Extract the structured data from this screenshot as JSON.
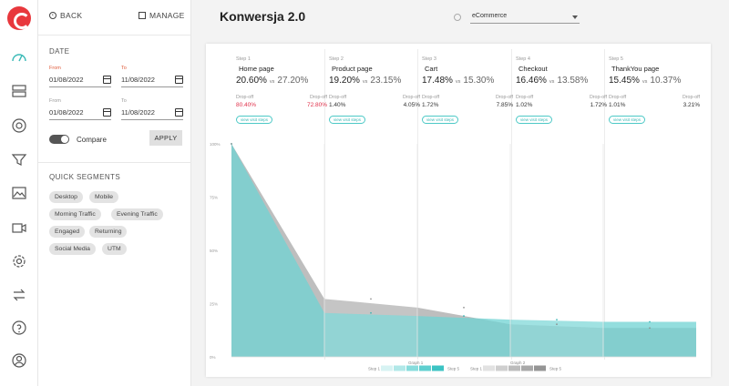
{
  "nav": {
    "back_label": "BACK",
    "manage_label": "MANAGE"
  },
  "date_filter": {
    "title": "DATE",
    "from_label": "From",
    "to_label": "To",
    "primary_from": "01/08/2022",
    "primary_to": "11/08/2022",
    "compare_from": "01/08/2022",
    "compare_to": "11/08/2022",
    "compare_label": "Compare",
    "apply_label": "APPLY"
  },
  "quick_segments": {
    "title": "QUICK SEGMENTS",
    "items": [
      "Desktop",
      "Mobile",
      "Morning Traffic",
      "Evening Traffic",
      "Engaged",
      "Returning",
      "Social Media",
      "UTM"
    ]
  },
  "header": {
    "title": "Konwersja 2.0",
    "selector_value": "eCommerce"
  },
  "funnel": {
    "dropoff_label": "Drop-off",
    "explore_label": "view visit steps",
    "vs_label": "vs",
    "steps": [
      {
        "number": "Step 1",
        "name": "Home page",
        "conversion": "20.60%",
        "conversion_compare": "27.20%",
        "dropoff": "80.40%",
        "dropoff_compare": "72.80%"
      },
      {
        "number": "Step 2",
        "name": "Product page",
        "conversion": "19.20%",
        "conversion_compare": "23.15%",
        "dropoff": "1.40%",
        "dropoff_compare": "4.05%"
      },
      {
        "number": "Step 3",
        "name": "Cart",
        "conversion": "17.48%",
        "conversion_compare": "15.30%",
        "dropoff": "1.72%",
        "dropoff_compare": "7.85%"
      },
      {
        "number": "Step 4",
        "name": "Checkout",
        "conversion": "16.46%",
        "conversion_compare": "13.58%",
        "dropoff": "1.02%",
        "dropoff_compare": "1.72%"
      },
      {
        "number": "Step 5",
        "name": "ThankYou page",
        "conversion": "15.45%",
        "conversion_compare": "10.37%",
        "dropoff": "1.01%",
        "dropoff_compare": "3.21%"
      }
    ]
  },
  "chart_data": {
    "type": "area",
    "y_ticks": [
      "100%",
      "75%",
      "50%",
      "25%",
      "0%"
    ],
    "ylim": [
      0,
      100
    ],
    "x": [
      "Step 1",
      "Step 2",
      "Step 3",
      "Step 4",
      "Step 5"
    ],
    "series": [
      {
        "name": "Graph 1",
        "color": "#6fd3d3",
        "values": [
          100,
          20.6,
          19.2,
          17.48,
          16.46
        ]
      },
      {
        "name": "Graph 2",
        "color": "#b3b3b3",
        "values": [
          100,
          27.2,
          23.15,
          15.3,
          13.58
        ]
      }
    ],
    "legend": [
      {
        "name": "Graph 1",
        "start": "Step 1",
        "end": "Step 5",
        "colors": [
          "#d7f3f3",
          "#b1e8e8",
          "#87dcdc",
          "#5fcfcf",
          "#3cc3c3"
        ]
      },
      {
        "name": "Graph 2",
        "start": "Step 1",
        "end": "Step 5",
        "colors": [
          "#e2e2e2",
          "#cfcfcf",
          "#bcbcbc",
          "#a8a8a8",
          "#959595"
        ]
      }
    ],
    "legend_position": "bottom",
    "grid": "vertical"
  },
  "icons": {
    "rail": [
      "dashboard-icon",
      "heatmap-icon",
      "target-icon",
      "funnel-icon",
      "image-icon",
      "video-icon",
      "settings-icon",
      "transfer-icon",
      "help-icon",
      "user-icon"
    ]
  }
}
